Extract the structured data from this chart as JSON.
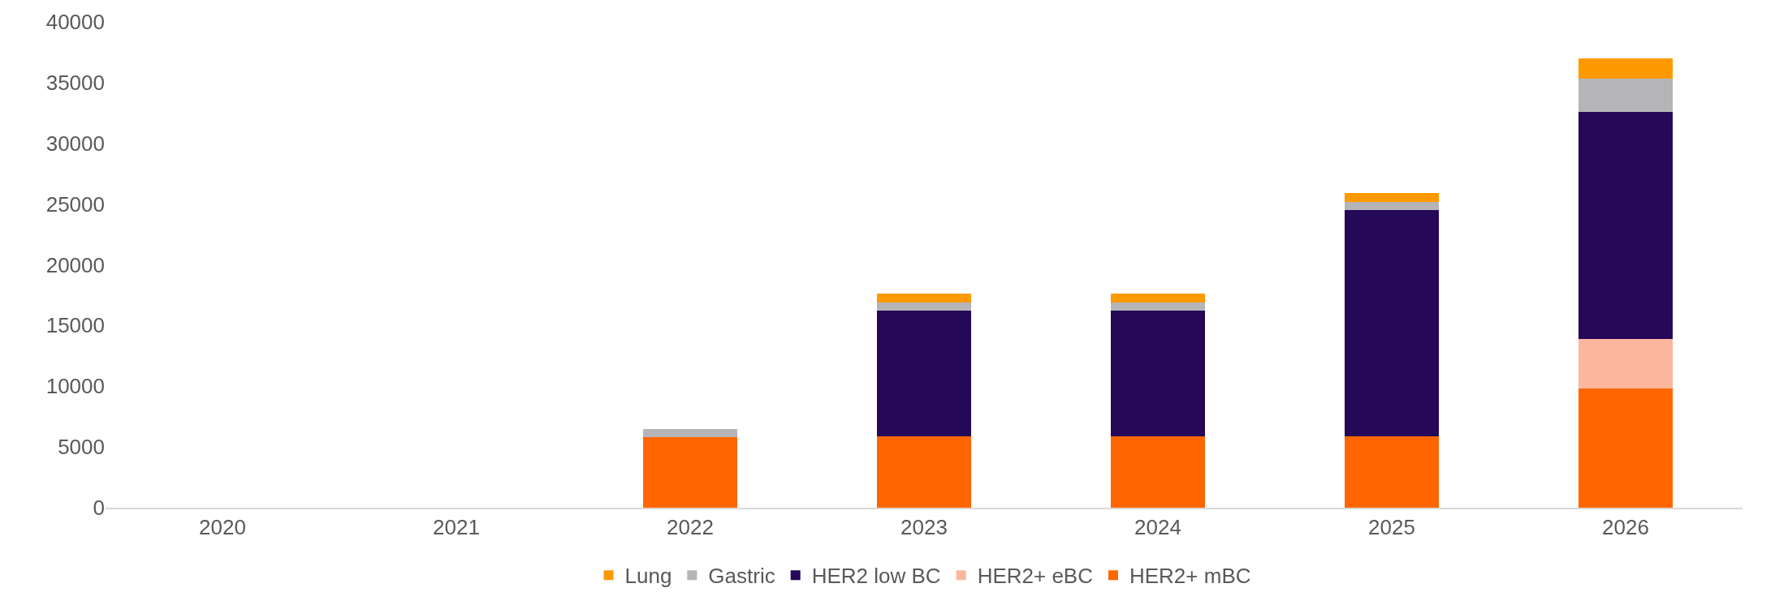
{
  "chart_data": {
    "type": "bar",
    "stacked": true,
    "categories": [
      "2020",
      "2021",
      "2022",
      "2023",
      "2024",
      "2025",
      "2026"
    ],
    "series": [
      {
        "name": "HER2+ mBC",
        "color": "#ff6600",
        "values": [
          0,
          0,
          5800,
          5900,
          5900,
          5900,
          9800
        ]
      },
      {
        "name": "HER2+ eBC",
        "color": "#fbb69d",
        "values": [
          0,
          0,
          0,
          0,
          0,
          0,
          4100
        ]
      },
      {
        "name": "HER2 low BC",
        "color": "#250858",
        "values": [
          0,
          0,
          0,
          10300,
          10300,
          18600,
          18700
        ]
      },
      {
        "name": "Gastric",
        "color": "#b5b5b8",
        "values": [
          0,
          0,
          700,
          700,
          700,
          700,
          2700
        ]
      },
      {
        "name": "Lung",
        "color": "#ff9900",
        "values": [
          0,
          0,
          0,
          700,
          700,
          700,
          1700
        ]
      }
    ],
    "ylim": [
      0,
      40000
    ],
    "yticks": [
      0,
      5000,
      10000,
      15000,
      20000,
      25000,
      30000,
      35000,
      40000
    ],
    "grid": false,
    "legend": "bottom"
  }
}
